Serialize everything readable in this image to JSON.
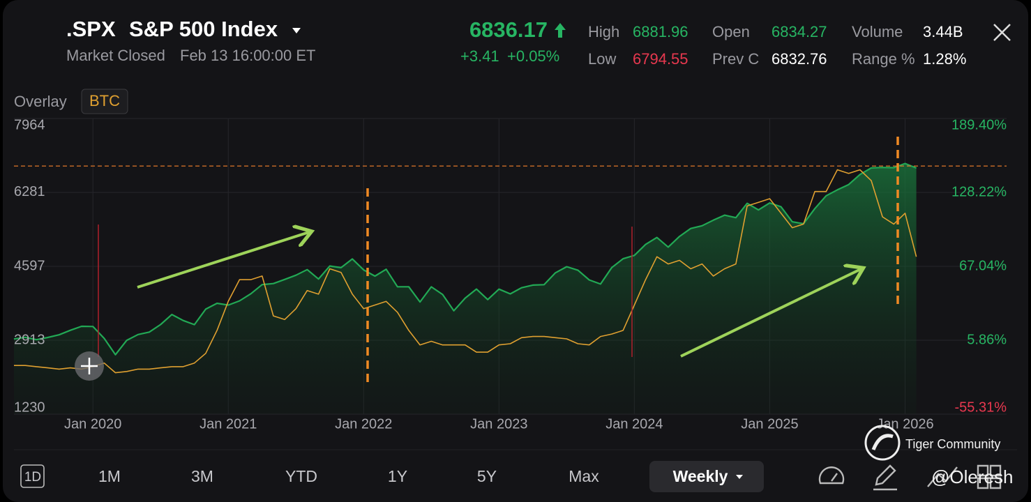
{
  "header": {
    "symbol": ".SPX",
    "name": "S&P 500 Index",
    "status": "Market Closed",
    "time": "Feb 13 16:00:00 ET",
    "price": "6836.17",
    "change": "+3.41",
    "change_pct": "+0.05%"
  },
  "stats": [
    {
      "label": "High",
      "value": "6881.96",
      "color": "#27b563"
    },
    {
      "label": "Low",
      "value": "6794.55",
      "color": "#e8384f"
    },
    {
      "label": "Open",
      "value": "6834.27",
      "color": "#27b563"
    },
    {
      "label": "Prev C",
      "value": "6832.76",
      "color": "#ffffff"
    },
    {
      "label": "Volume",
      "value": "3.44B",
      "color": "#ffffff"
    },
    {
      "label": "Range %",
      "value": "1.28%",
      "color": "#ffffff"
    }
  ],
  "overlay_label": "Overlay",
  "chart_data": {
    "type": "line",
    "x": [
      "2019-06",
      "2019-07",
      "2019-08",
      "2019-09",
      "2019-10",
      "2019-11",
      "2019-12",
      "2020-01",
      "2020-02",
      "2020-03",
      "2020-04",
      "2020-05",
      "2020-06",
      "2020-07",
      "2020-08",
      "2020-09",
      "2020-10",
      "2020-11",
      "2020-12",
      "2021-01",
      "2021-02",
      "2021-03",
      "2021-04",
      "2021-05",
      "2021-06",
      "2021-07",
      "2021-08",
      "2021-09",
      "2021-10",
      "2021-11",
      "2021-12",
      "2022-01",
      "2022-02",
      "2022-03",
      "2022-04",
      "2022-05",
      "2022-06",
      "2022-07",
      "2022-08",
      "2022-09",
      "2022-10",
      "2022-11",
      "2022-12",
      "2023-01",
      "2023-02",
      "2023-03",
      "2023-04",
      "2023-05",
      "2023-06",
      "2023-07",
      "2023-08",
      "2023-09",
      "2023-10",
      "2023-11",
      "2023-12",
      "2024-01",
      "2024-02",
      "2024-03",
      "2024-04",
      "2024-05",
      "2024-06",
      "2024-07",
      "2024-08",
      "2024-09",
      "2024-10",
      "2024-11",
      "2024-12",
      "2025-01",
      "2025-02",
      "2025-03",
      "2025-04",
      "2025-05",
      "2025-06",
      "2025-07",
      "2025-08",
      "2025-09",
      "2025-10",
      "2025-11",
      "2025-12",
      "2026-01",
      "2026-02"
    ],
    "series": [
      {
        "color": "#22a955",
        "fill": true,
        "values": [
          2942,
          2980,
          2926,
          2977,
          3038,
          3141,
          3231,
          3226,
          2954,
          2585,
          2912,
          3044,
          3100,
          3271,
          3500,
          3363,
          3270,
          3622,
          3756,
          3714,
          3811,
          3973,
          4181,
          4204,
          4298,
          4395,
          4523,
          4308,
          4605,
          4567,
          4766,
          4516,
          4374,
          4530,
          4132,
          4132,
          3785,
          4130,
          3955,
          3586,
          3872,
          4080,
          3840,
          4077,
          3970,
          4109,
          4169,
          4180,
          4450,
          4589,
          4508,
          4288,
          4194,
          4568,
          4770,
          4846,
          5096,
          5254,
          5036,
          5278,
          5460,
          5522,
          5648,
          5762,
          5705,
          6032,
          5882,
          6041,
          5955,
          5612,
          5569,
          5912,
          6205,
          6339,
          6460,
          6688,
          6840,
          6849,
          6845,
          6940,
          6836.17
        ]
      },
      {
        "name": "BTC",
        "color": "#e0a030",
        "axis": "y2",
        "fill": false,
        "values": [
          -15,
          -15,
          -16,
          -17,
          -18,
          -17,
          -18,
          -16,
          -13,
          -21,
          -20,
          -18,
          -18,
          -17,
          -16,
          -16,
          -13,
          -5,
          14,
          38,
          56,
          56,
          59,
          26,
          23,
          32,
          47,
          44,
          65,
          62,
          44,
          32,
          35,
          38,
          29,
          14,
          2,
          5,
          2,
          2,
          2,
          -4,
          -4,
          2,
          3,
          8,
          9,
          9,
          8,
          7,
          3,
          2,
          9,
          11,
          14,
          35,
          56,
          75,
          69,
          72,
          65,
          69,
          59,
          65,
          69,
          117,
          120,
          123,
          111,
          99,
          102,
          129,
          129,
          147,
          144,
          147,
          138,
          108,
          102,
          111,
          75
        ]
      }
    ],
    "xlim": [
      "2019-06",
      "2026-10"
    ],
    "xticks": [
      {
        "value": "2020-01",
        "label": "Jan 2020"
      },
      {
        "value": "2021-01",
        "label": "Jan 2021"
      },
      {
        "value": "2022-01",
        "label": "Jan 2022"
      },
      {
        "value": "2023-01",
        "label": "Jan 2023"
      },
      {
        "value": "2024-01",
        "label": "Jan 2024"
      },
      {
        "value": "2025-01",
        "label": "Jan 2025"
      },
      {
        "value": "2026-01",
        "label": "Jan 2026"
      }
    ],
    "ylim": [
      1230,
      7964
    ],
    "yticks": [
      1230,
      2913,
      4597,
      6281,
      7964
    ],
    "y2lim": [
      -55.31,
      189.4
    ],
    "y2ticks": [
      {
        "value": 189.4,
        "label": "189.40%"
      },
      {
        "value": 128.22,
        "label": "128.22%"
      },
      {
        "value": 67.04,
        "label": "67.04%"
      },
      {
        "value": 5.86,
        "label": "5.86%"
      },
      {
        "value": -55.31,
        "label": "-55.31%"
      }
    ],
    "hline": 6882,
    "grid": true
  },
  "toolbar": {
    "buttons": [
      "1D",
      "1M",
      "3M",
      "YTD",
      "1Y",
      "5Y",
      "Max"
    ],
    "interval": "Weekly"
  },
  "watermark": {
    "brand": "Tiger Community",
    "user": "@Oleresh"
  }
}
